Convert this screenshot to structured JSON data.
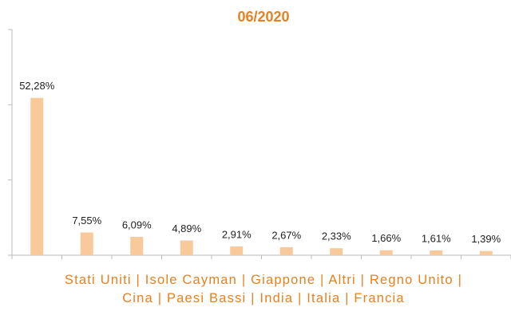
{
  "chart_data": {
    "type": "bar",
    "title": "06/2020",
    "x_label": "Stati Uniti | Isole Cayman | Giappone | Altri | Regno Unito | Cina | Paesi Bassi | India | Italia | Francia",
    "values": [
      52.28,
      7.55,
      6.09,
      4.89,
      2.91,
      2.67,
      2.33,
      1.66,
      1.61,
      1.39
    ],
    "value_labels": [
      "52,28%",
      "7,55%",
      "6,09%",
      "4,89%",
      "2,91%",
      "2,67%",
      "2,33%",
      "1,66%",
      "1,61%",
      "1,39%"
    ],
    "color": "#f8c99a",
    "ylim": [
      0,
      75
    ],
    "yticks": [
      0,
      25,
      50,
      75
    ]
  }
}
